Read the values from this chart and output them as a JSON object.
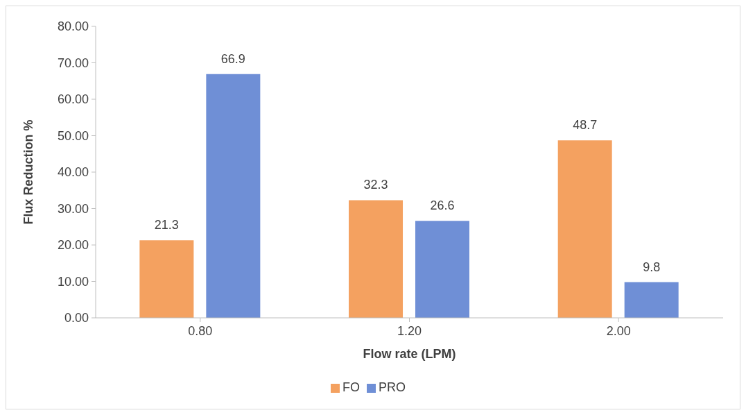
{
  "chart_data": {
    "type": "bar",
    "xlabel": "Flow rate (LPM)",
    "ylabel": "Flux Reduction %",
    "categories": [
      "0.80",
      "1.20",
      "2.00"
    ],
    "series": [
      {
        "name": "FO",
        "color": "#f4a160",
        "values": [
          21.3,
          32.3,
          48.7
        ]
      },
      {
        "name": "PRO",
        "color": "#6f8fd6",
        "values": [
          66.9,
          26.6,
          9.8
        ]
      }
    ],
    "ylim": [
      0,
      80
    ],
    "yticks": [
      {
        "value": 0,
        "label": "0.00"
      },
      {
        "value": 10,
        "label": "10.00"
      },
      {
        "value": 20,
        "label": "20.00"
      },
      {
        "value": 30,
        "label": "30.00"
      },
      {
        "value": 40,
        "label": "40.00"
      },
      {
        "value": 50,
        "label": "50.00"
      },
      {
        "value": 60,
        "label": "60.00"
      },
      {
        "value": 70,
        "label": "70.00"
      },
      {
        "value": 80,
        "label": "80.00"
      }
    ],
    "grid": false,
    "legend": "bottom",
    "data_labels": true
  }
}
